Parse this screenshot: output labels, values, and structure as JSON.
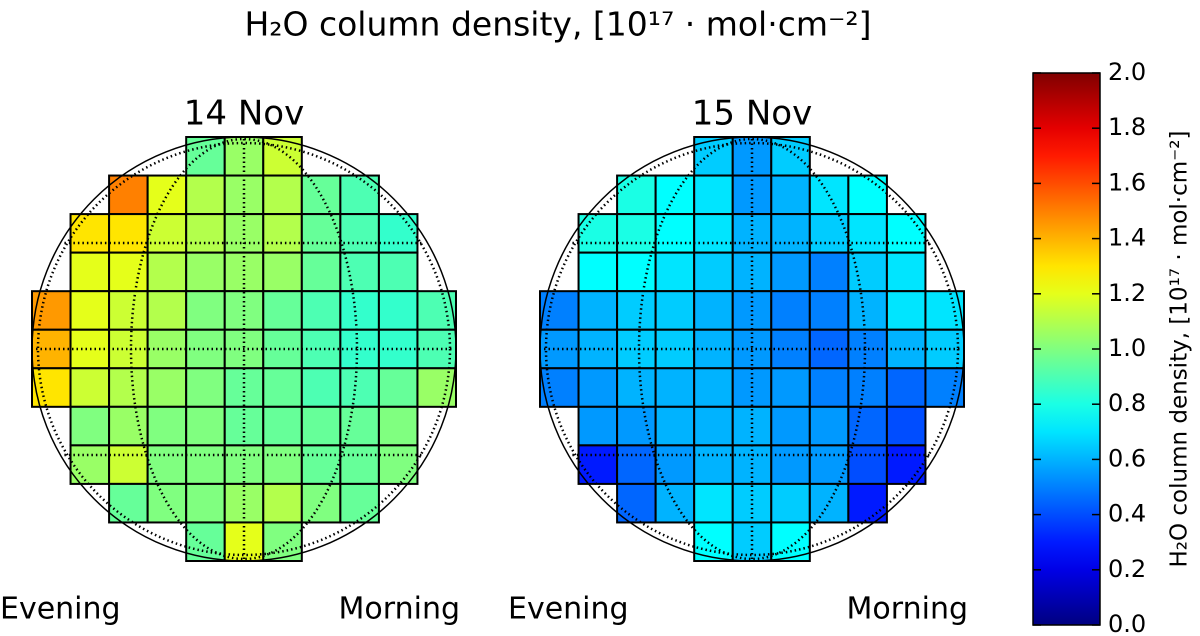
{
  "chart_data": {
    "type": "disk-heatmap",
    "title": "H₂O column density, [10¹⁷ · mol·cm⁻²]",
    "colormap": "jet",
    "panels": [
      {
        "title": "14 Nov",
        "left_label": "Evening",
        "right_label": "Morning",
        "values": [
          [
            null,
            null,
            null,
            null,
            0.95,
            1.05,
            1.15,
            null,
            null,
            null,
            null
          ],
          [
            null,
            null,
            1.5,
            1.2,
            1.1,
            1.05,
            1.1,
            0.95,
            0.9,
            null,
            null
          ],
          [
            null,
            1.3,
            1.3,
            1.15,
            1.1,
            1.05,
            1.1,
            0.95,
            0.9,
            0.85,
            null
          ],
          [
            null,
            1.2,
            1.2,
            1.1,
            1.05,
            1.05,
            1.05,
            0.95,
            0.9,
            0.9,
            null
          ],
          [
            1.45,
            1.2,
            1.15,
            1.1,
            1.0,
            1.0,
            0.95,
            0.9,
            0.85,
            0.85,
            0.9
          ],
          [
            1.4,
            1.2,
            1.15,
            1.05,
            1.0,
            1.0,
            0.95,
            0.9,
            0.85,
            0.85,
            0.9
          ],
          [
            1.3,
            1.15,
            1.1,
            1.05,
            1.0,
            0.95,
            0.95,
            0.9,
            0.9,
            0.95,
            1.05
          ],
          [
            null,
            1.0,
            1.05,
            1.0,
            1.0,
            0.95,
            0.95,
            0.95,
            0.95,
            1.0,
            null
          ],
          [
            null,
            1.05,
            1.15,
            1.0,
            1.0,
            1.0,
            1.0,
            0.95,
            0.95,
            1.0,
            null
          ],
          [
            null,
            null,
            0.95,
            1.0,
            1.0,
            1.05,
            1.1,
            1.0,
            0.95,
            null,
            null
          ],
          [
            null,
            null,
            null,
            null,
            0.95,
            1.2,
            1.0,
            null,
            null,
            null,
            null
          ]
        ]
      },
      {
        "title": "15 Nov",
        "left_label": "Evening",
        "right_label": "Morning",
        "values": [
          [
            null,
            null,
            null,
            null,
            0.65,
            0.55,
            0.65,
            null,
            null,
            null,
            null
          ],
          [
            null,
            null,
            0.8,
            0.75,
            0.7,
            0.55,
            0.6,
            0.7,
            0.75,
            null,
            null
          ],
          [
            null,
            0.8,
            0.8,
            0.75,
            0.7,
            0.6,
            0.6,
            0.65,
            0.7,
            0.75,
            null
          ],
          [
            null,
            0.75,
            0.75,
            0.7,
            0.65,
            0.6,
            0.55,
            0.5,
            0.65,
            0.7,
            null
          ],
          [
            0.5,
            0.6,
            0.65,
            0.65,
            0.6,
            0.55,
            0.5,
            0.5,
            0.6,
            0.7,
            0.7
          ],
          [
            0.55,
            0.6,
            0.65,
            0.65,
            0.6,
            0.55,
            0.5,
            0.45,
            0.5,
            0.6,
            0.65
          ],
          [
            0.5,
            0.55,
            0.6,
            0.6,
            0.6,
            0.55,
            0.55,
            0.5,
            0.5,
            0.45,
            0.5
          ],
          [
            null,
            0.55,
            0.55,
            0.6,
            0.6,
            0.6,
            0.55,
            0.55,
            0.45,
            0.4,
            null
          ],
          [
            null,
            0.3,
            0.45,
            0.55,
            0.6,
            0.6,
            0.55,
            0.55,
            0.4,
            0.3,
            null
          ],
          [
            null,
            null,
            0.45,
            0.6,
            0.7,
            0.65,
            0.65,
            0.6,
            0.3,
            null,
            null
          ],
          [
            null,
            null,
            null,
            null,
            0.75,
            0.65,
            0.75,
            null,
            null,
            null,
            null
          ]
        ]
      }
    ],
    "colorbar": {
      "label": "H₂O column density, [10¹⁷ · mol·cm⁻²]",
      "lim": [
        0,
        2
      ],
      "ticks": [
        {
          "value": 0,
          "label": "0.0"
        },
        0.2,
        0.4,
        0.6,
        0.8,
        {
          "value": 1,
          "label": "1.0"
        },
        1.2,
        1.4,
        1.6,
        1.8,
        {
          "value": 2,
          "label": "2.0"
        }
      ]
    }
  }
}
